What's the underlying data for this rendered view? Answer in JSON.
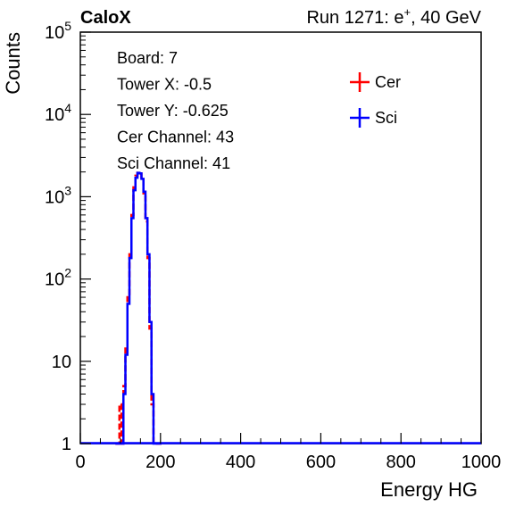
{
  "header": {
    "experiment": "CaloX",
    "run_info_prefix": "Run 1271: e",
    "run_info_sup": "+",
    "run_info_suffix": ", 40 GeV"
  },
  "info_box": {
    "lines": [
      "Board: 7",
      "Tower X: -0.5",
      "Tower Y: -0.625",
      "Cer Channel: 43",
      "Sci Channel: 41"
    ]
  },
  "colors": {
    "cer": "#ff0000",
    "sci": "#0000ff",
    "axis": "#000000"
  },
  "chart_data": {
    "type": "line",
    "title": "",
    "xlabel": "Energy HG",
    "ylabel": "Counts",
    "xlim": [
      0,
      1000
    ],
    "ylim": [
      1,
      100000
    ],
    "y_scale": "log",
    "grid": false,
    "legend_position": "top-right",
    "x_ticks": [
      {
        "value": 0,
        "label": "0"
      },
      {
        "value": 200,
        "label": "200"
      },
      {
        "value": 400,
        "label": "400"
      },
      {
        "value": 600,
        "label": "600"
      },
      {
        "value": 800,
        "label": "800"
      },
      {
        "value": 1000,
        "label": "1000"
      }
    ],
    "y_ticks": [
      {
        "value": 1,
        "base": "1",
        "exp": ""
      },
      {
        "value": 10,
        "base": "10",
        "exp": ""
      },
      {
        "value": 100,
        "base": "10",
        "exp": "2"
      },
      {
        "value": 1000,
        "base": "10",
        "exp": "3"
      },
      {
        "value": 10000,
        "base": "10",
        "exp": "4"
      },
      {
        "value": 100000,
        "base": "10",
        "exp": "5"
      }
    ],
    "x": [
      90,
      95,
      100,
      105,
      110,
      115,
      120,
      125,
      130,
      135,
      140,
      145,
      150,
      155,
      160,
      165,
      170,
      175,
      180,
      185,
      190,
      195,
      200
    ],
    "series": [
      {
        "name": "Cer",
        "color": "#ff0000",
        "values": [
          0,
          0,
          3,
          1,
          5,
          15,
          60,
          200,
          600,
          1300,
          1800,
          1950,
          1900,
          1600,
          1100,
          500,
          180,
          25,
          3,
          0,
          0,
          0,
          0
        ]
      },
      {
        "name": "Sci",
        "color": "#0000ff",
        "values": [
          0,
          0,
          0,
          0,
          4,
          12,
          50,
          180,
          550,
          1200,
          1700,
          1950,
          1920,
          1650,
          1150,
          550,
          200,
          30,
          4,
          0,
          0,
          0,
          0
        ]
      }
    ]
  }
}
